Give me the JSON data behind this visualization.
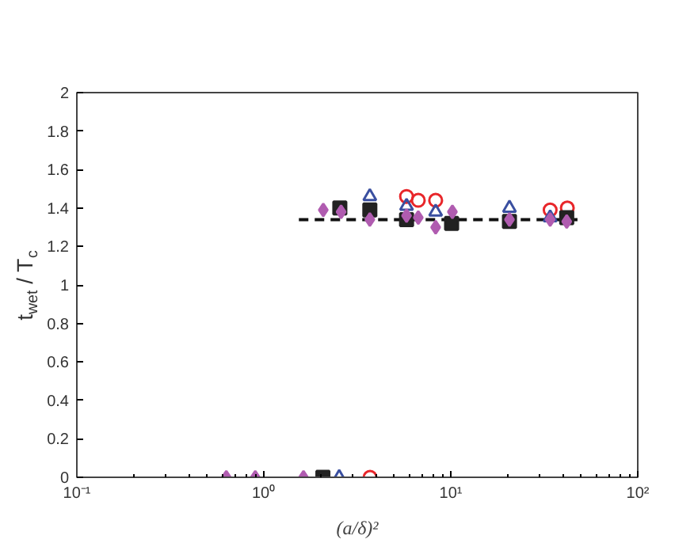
{
  "chart_data": {
    "type": "scatter",
    "xlabel": "(a/δ)²",
    "ylabel": "t$_{wet}$ / T$_{c}$",
    "log": "x",
    "grid": false,
    "xlim": [
      0.1,
      100
    ],
    "xticks": [
      {
        "value": 0.1,
        "label": "10⁻¹"
      },
      {
        "value": 1,
        "label": "10⁰"
      },
      {
        "value": 10,
        "label": "10¹"
      },
      {
        "value": 100,
        "label": "10²"
      }
    ],
    "ylim": [
      0,
      2
    ],
    "yticks": [
      0,
      0.2,
      0.4,
      0.6,
      0.8,
      1,
      1.2,
      1.4,
      1.6,
      1.8,
      2
    ],
    "series": [
      {
        "type": "line",
        "color": "#111111",
        "line_style": "dashed",
        "marker": "none",
        "x": [
          1.54,
          47.6
        ],
        "values": [
          1.34,
          1.34
        ]
      },
      {
        "color": "#e8262a",
        "marker": "circle",
        "x": [
          3.7,
          5.8,
          6.7,
          8.3,
          34,
          42
        ],
        "values": [
          0,
          1.46,
          1.44,
          1.44,
          1.39,
          1.4
        ]
      },
      {
        "color": "#3a4fa0",
        "marker": "triangle",
        "x": [
          2.53,
          3.69,
          5.8,
          8.3,
          20.6,
          34
        ],
        "values": [
          0,
          1.46,
          1.41,
          1.38,
          1.4,
          1.35
        ]
      },
      {
        "color": "#222222",
        "marker": "square",
        "x": [
          2.07,
          2.55,
          3.69,
          5.8,
          10.1,
          20.6,
          41.7
        ],
        "values": [
          0,
          1.4,
          1.39,
          1.34,
          1.32,
          1.33,
          1.35
        ]
      },
      {
        "color": "#b05cb0",
        "marker": "diamond",
        "x": [
          0.63,
          0.9,
          1.63,
          2.08,
          2.59,
          3.69,
          5.8,
          6.7,
          8.3,
          10.2,
          20.6,
          34,
          41.7
        ],
        "values": [
          0,
          0,
          0,
          1.39,
          1.38,
          1.34,
          1.36,
          1.35,
          1.3,
          1.38,
          1.34,
          1.34,
          1.33
        ]
      }
    ]
  }
}
